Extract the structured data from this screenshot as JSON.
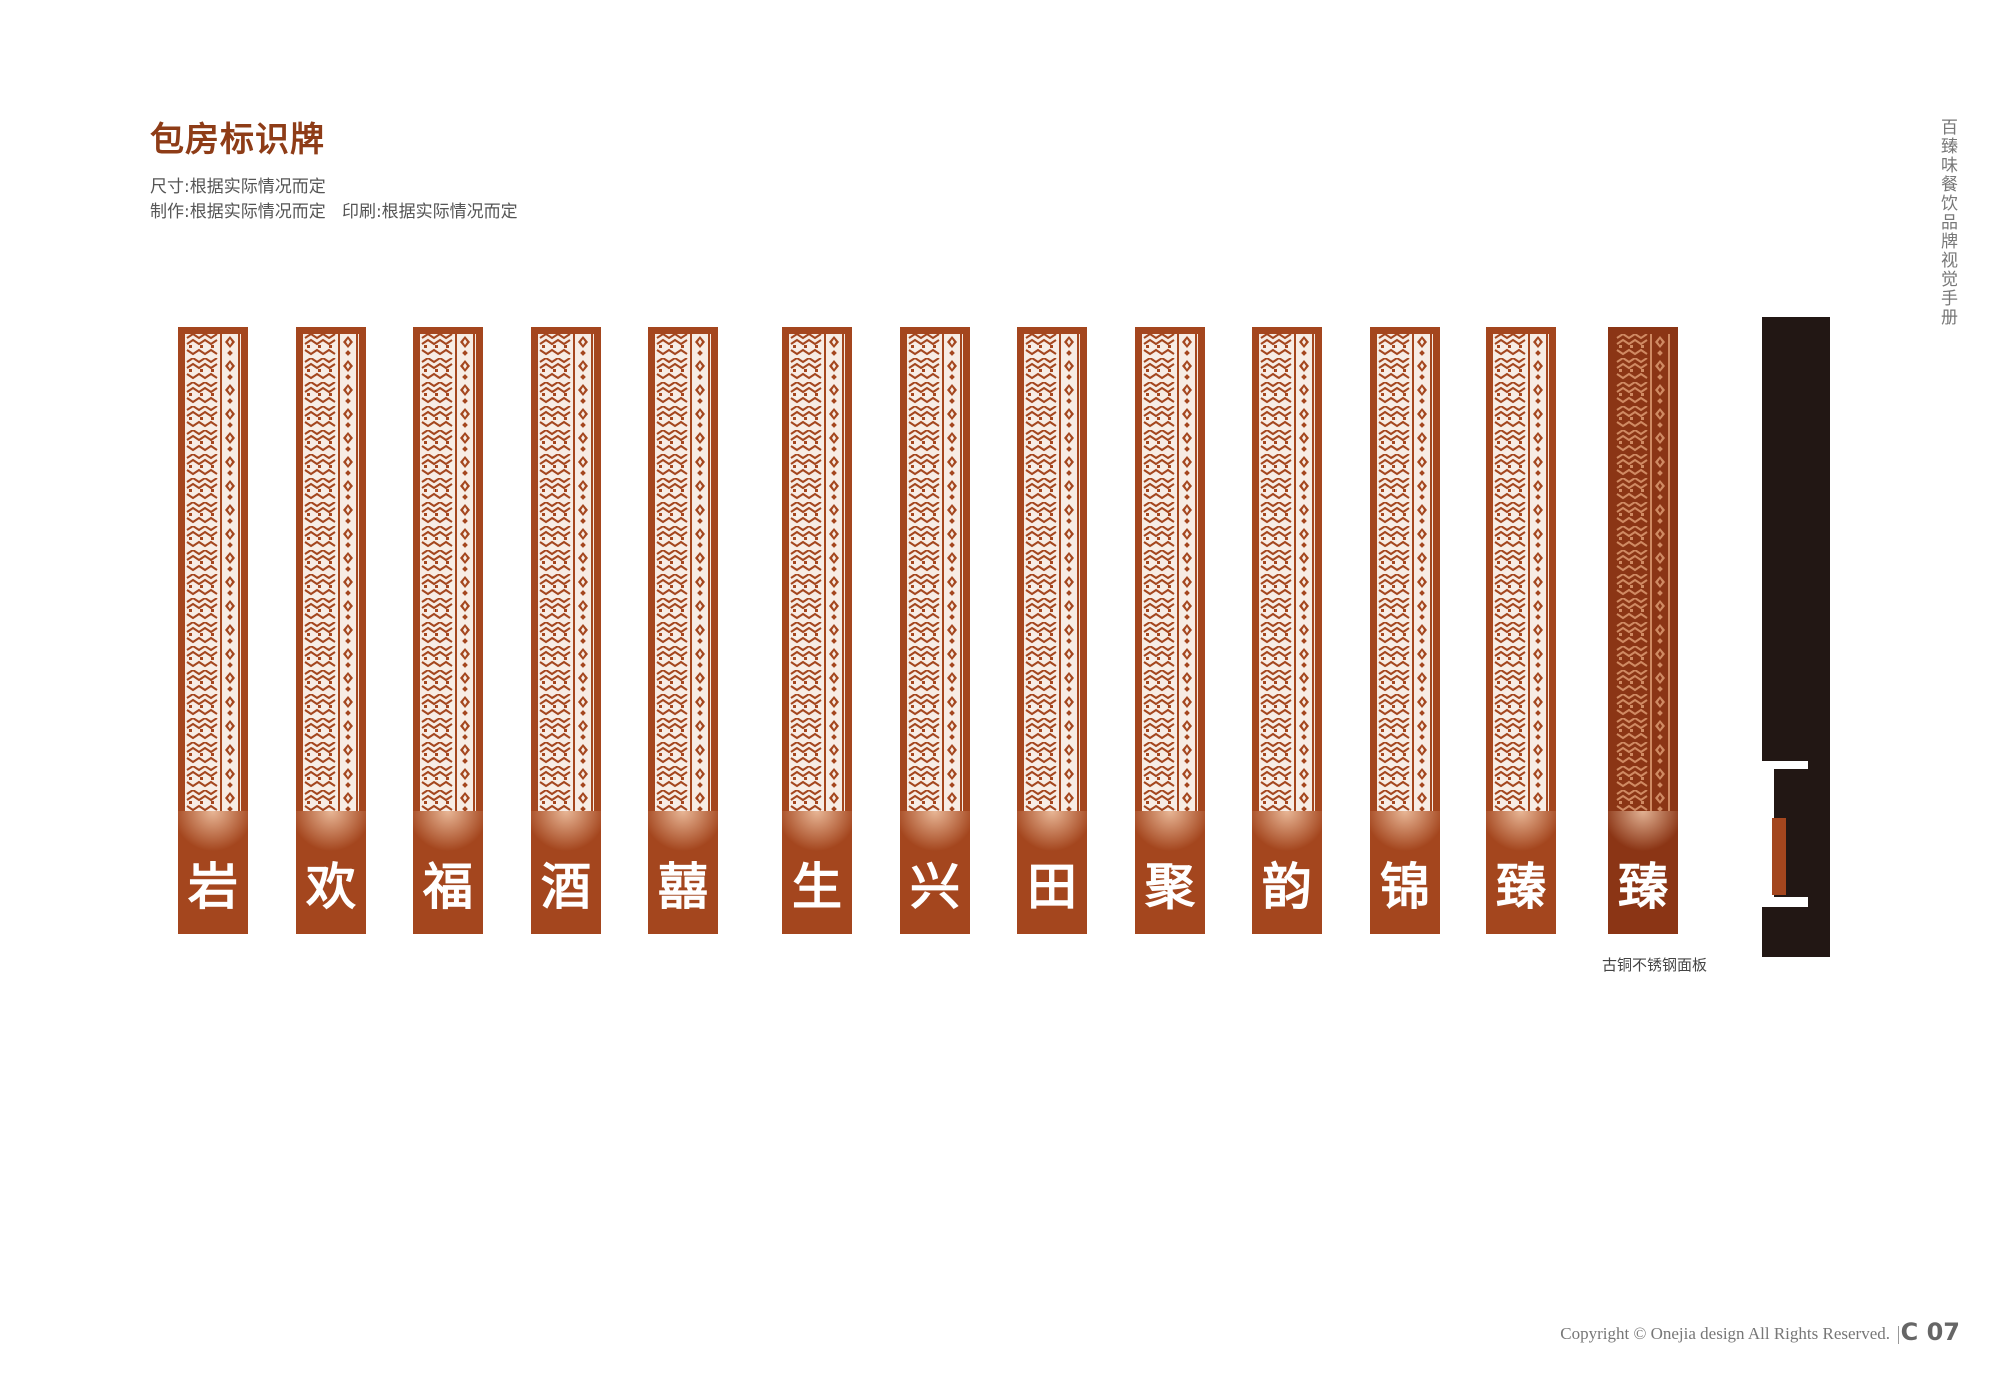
{
  "page": {
    "title": "包房标识牌",
    "spec_size": "尺寸:根据实际情况而定",
    "spec_make": "制作:根据实际情况而定   印刷:根据实际情况而定",
    "brand_vertical": "百臻味餐饮品牌视觉手册",
    "caption": "古铜不锈钢面板",
    "copyright": "Copyright © Onejia design All Rights Reserved.",
    "page_number": "C 07"
  },
  "signs": [
    {
      "char": "岩"
    },
    {
      "char": "欢"
    },
    {
      "char": "福"
    },
    {
      "char": "酒"
    },
    {
      "char": "囍"
    },
    {
      "char": "生"
    },
    {
      "char": "兴"
    },
    {
      "char": "田"
    },
    {
      "char": "聚"
    },
    {
      "char": "韵"
    },
    {
      "char": "锦"
    },
    {
      "char": "臻"
    },
    {
      "char": "臻"
    }
  ],
  "colors": {
    "brand_copper": "#a4461e",
    "dark_copper": "#8b3515",
    "title": "#8e3c17",
    "profile": "#221714"
  }
}
